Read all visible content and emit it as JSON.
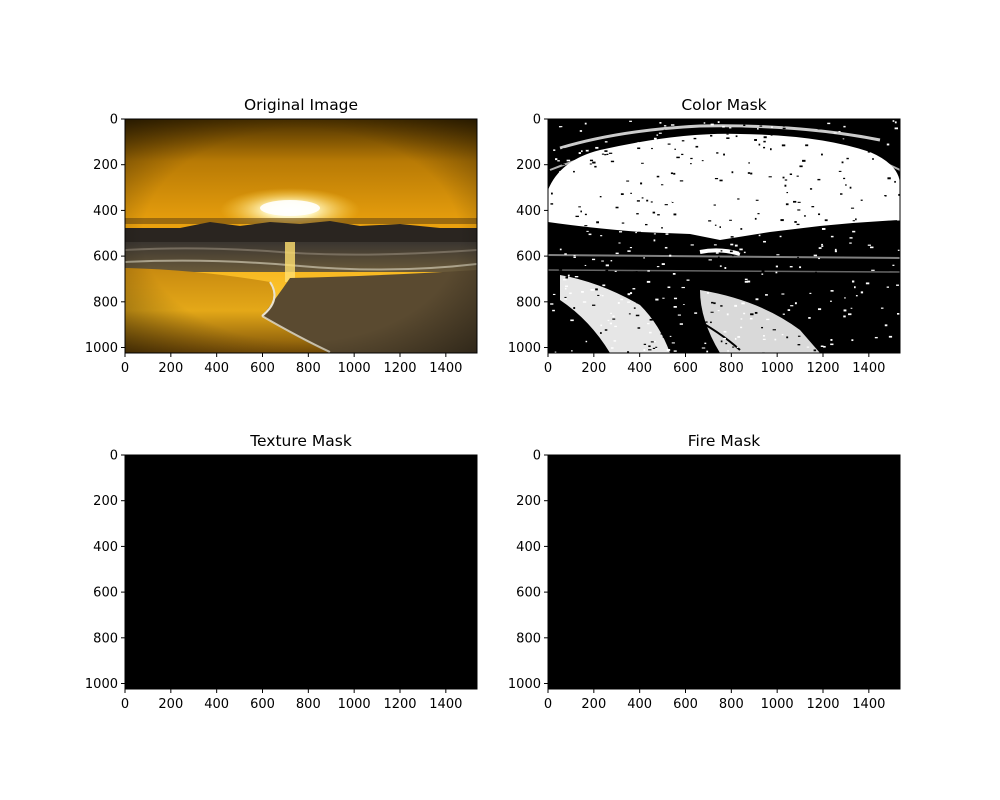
{
  "figure": {
    "panels": [
      {
        "title": "Original Image",
        "kind": "photo"
      },
      {
        "title": "Color Mask",
        "kind": "mask"
      },
      {
        "title": "Texture Mask",
        "kind": "black"
      },
      {
        "title": "Fire Mask",
        "kind": "black"
      }
    ]
  },
  "chart_data": [
    {
      "type": "image",
      "title": "Original Image",
      "xlim": [
        0,
        1536
      ],
      "ylim": [
        1024,
        0
      ],
      "xticks": [
        "0",
        "200",
        "400",
        "600",
        "800",
        "1000",
        "1200",
        "1400"
      ],
      "yticks": [
        "0",
        "200",
        "400",
        "600",
        "800",
        "1000"
      ],
      "x_tick_values": [
        0,
        200,
        400,
        600,
        800,
        1000,
        1200,
        1400
      ],
      "y_tick_values": [
        0,
        200,
        400,
        600,
        800,
        1000
      ]
    },
    {
      "type": "image",
      "title": "Color Mask",
      "xlim": [
        0,
        1536
      ],
      "ylim": [
        1024,
        0
      ],
      "xticks": [
        "0",
        "200",
        "400",
        "600",
        "800",
        "1000",
        "1200",
        "1400"
      ],
      "yticks": [
        "0",
        "200",
        "400",
        "600",
        "800",
        "1000"
      ],
      "x_tick_values": [
        0,
        200,
        400,
        600,
        800,
        1000,
        1200,
        1400
      ],
      "y_tick_values": [
        0,
        200,
        400,
        600,
        800,
        1000
      ]
    },
    {
      "type": "image",
      "title": "Texture Mask",
      "xlim": [
        0,
        1536
      ],
      "ylim": [
        1024,
        0
      ],
      "xticks": [
        "0",
        "200",
        "400",
        "600",
        "800",
        "1000",
        "1200",
        "1400"
      ],
      "yticks": [
        "0",
        "200",
        "400",
        "600",
        "800",
        "1000"
      ],
      "x_tick_values": [
        0,
        200,
        400,
        600,
        800,
        1000,
        1200,
        1400
      ],
      "y_tick_values": [
        0,
        200,
        400,
        600,
        800,
        1000
      ]
    },
    {
      "type": "image",
      "title": "Fire Mask",
      "xlim": [
        0,
        1536
      ],
      "ylim": [
        1024,
        0
      ],
      "xticks": [
        "0",
        "200",
        "400",
        "600",
        "800",
        "1000",
        "1200",
        "1400"
      ],
      "yticks": [
        "0",
        "200",
        "400",
        "600",
        "800",
        "1000"
      ],
      "x_tick_values": [
        0,
        200,
        400,
        600,
        800,
        1000,
        1200,
        1400
      ],
      "y_tick_values": [
        0,
        200,
        400,
        600,
        800,
        1000
      ]
    }
  ]
}
